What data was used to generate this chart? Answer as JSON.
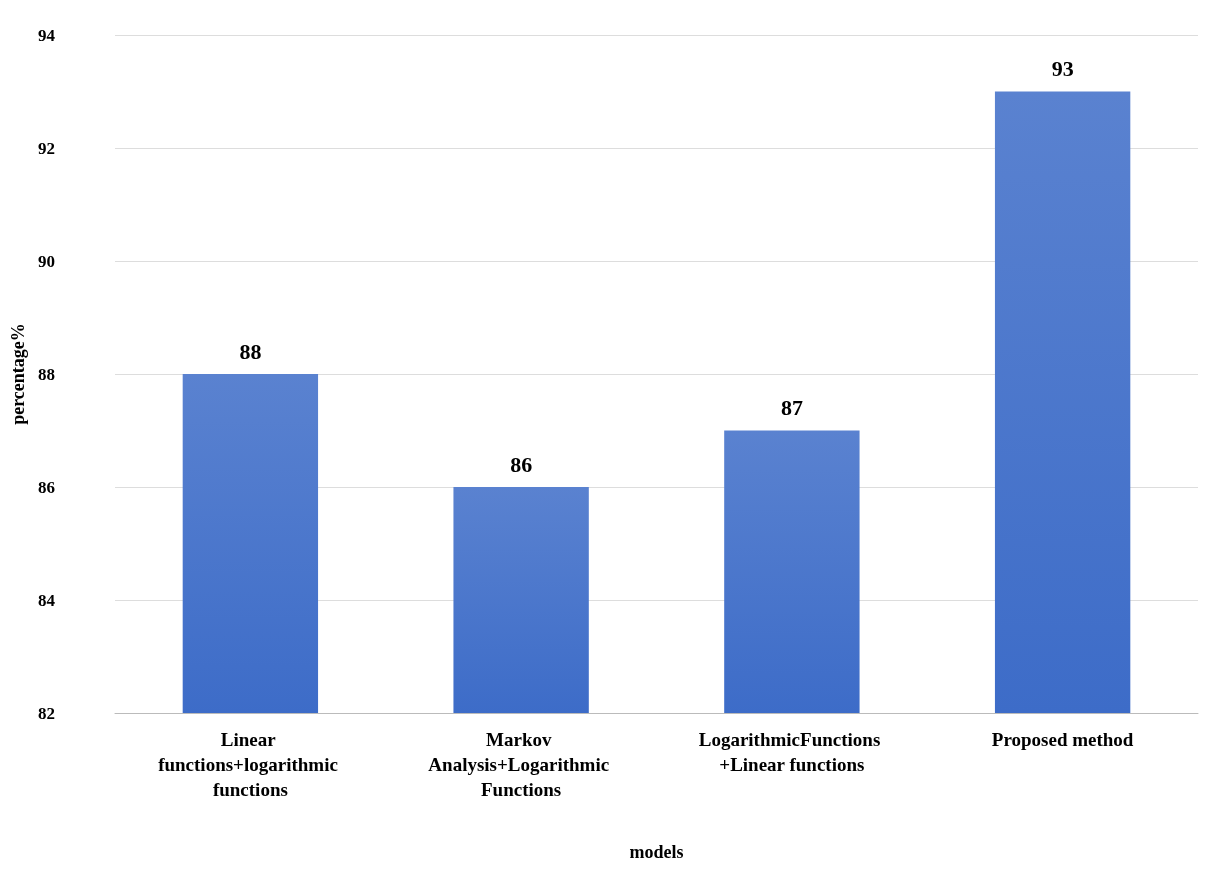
{
  "chart_data": {
    "type": "bar",
    "xlabel": "models",
    "ylabel": "percentage%",
    "categories": [
      "Linear functions+logarithmic functions",
      "Markov Analysis+Logarithmic Functions",
      "LogarithmicFunctions +Linear functions",
      "Proposed method"
    ],
    "values": [
      88,
      86,
      87,
      93
    ],
    "color": "#3d6cc8",
    "ylim": [
      82,
      94
    ],
    "yticks": [
      82,
      84,
      86,
      88,
      90,
      92,
      94
    ],
    "grid": "y",
    "data_labels": true
  }
}
